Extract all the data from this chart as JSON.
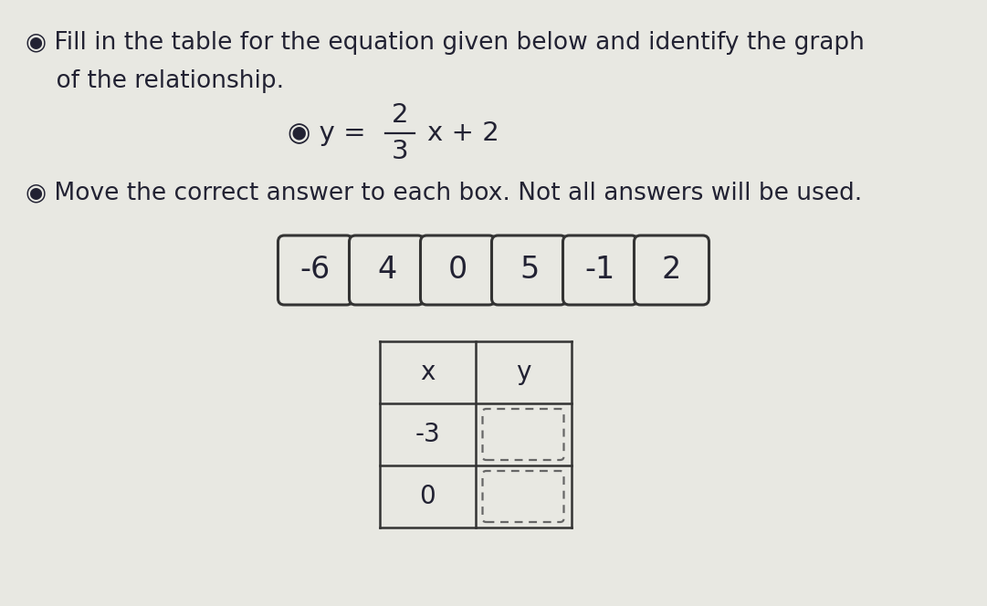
{
  "title_line1": "◉ Fill in the table for the equation given below and identify the graph",
  "title_line2": "    of the relationship.",
  "equation_y_prefix": "◉ y = ",
  "equation_numerator": "2",
  "equation_denominator": "3",
  "equation_suffix": "x + 2",
  "instruction": "◉ Move the correct answer to each box. Not all answers will be used.",
  "answer_tiles": [
    "-6",
    "4",
    "0",
    "5",
    "-1",
    "2"
  ],
  "table_headers": [
    "x",
    "y"
  ],
  "table_x_values": [
    "-3",
    "0"
  ],
  "background_color": "#e8e8e2",
  "tile_bg": "#e8e8e2",
  "tile_border_color": "#333333",
  "table_border_color": "#333333",
  "dashed_box_color": "#666666",
  "text_color": "#222233",
  "font_size_title": 19,
  "font_size_equation": 21,
  "font_size_instruction": 19,
  "font_size_tiles": 24,
  "font_size_table": 20,
  "tile_border_lw": 2.2,
  "table_border_lw": 1.8
}
